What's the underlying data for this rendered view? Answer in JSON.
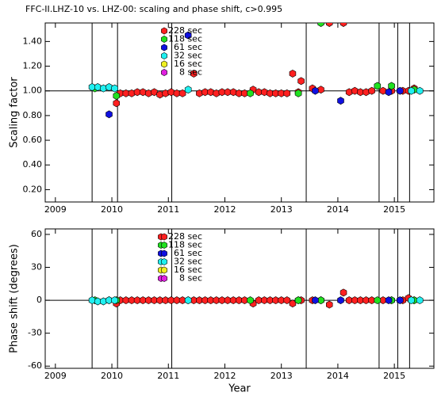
{
  "chart_data": [
    {
      "type": "scatter",
      "title": "FFC-II.LHZ-10 vs. LHZ-00: scaling and phase shift, c>0.995",
      "ylabel": "Scaling factor",
      "xlim": [
        2008.82,
        2015.7
      ],
      "xticks": [
        2009,
        2010,
        2011,
        2012,
        2013,
        2014,
        2015
      ],
      "ylim": [
        0.1,
        1.55
      ],
      "yticks": [
        {
          "value": 0.2,
          "label": "0.20"
        },
        {
          "value": 0.4,
          "label": "0.40"
        },
        {
          "value": 0.6,
          "label": "0.60"
        },
        {
          "value": 0.8,
          "label": "0.80"
        },
        {
          "value": 1.0,
          "label": "1.00"
        },
        {
          "value": 1.2,
          "label": "1.20"
        },
        {
          "value": 1.4,
          "label": "1.40"
        }
      ],
      "vlines": [
        2009.65,
        2010.1,
        2011.06,
        2013.44,
        2014.73,
        2015.06,
        2015.27
      ],
      "hline": 1.0,
      "series": [
        {
          "name": "228 sec",
          "color": "#ff2020",
          "x": [
            2010.08,
            2010.15,
            2010.25,
            2010.35,
            2010.45,
            2010.55,
            2010.65,
            2010.75,
            2010.85,
            2010.95,
            2011.05,
            2011.15,
            2011.25,
            2011.45,
            2011.55,
            2011.65,
            2011.75,
            2011.85,
            2011.95,
            2012.05,
            2012.15,
            2012.25,
            2012.35,
            2012.5,
            2012.6,
            2012.7,
            2012.8,
            2012.9,
            2013.0,
            2013.1,
            2013.2,
            2013.3,
            2013.35,
            2013.55,
            2013.7,
            2013.85,
            2014.1,
            2014.2,
            2014.3,
            2014.4,
            2014.5,
            2014.6,
            2014.8,
            2014.95,
            2015.15,
            2015.25,
            2015.35
          ],
          "values": [
            0.9,
            0.98,
            0.98,
            0.98,
            0.99,
            0.99,
            0.98,
            0.99,
            0.97,
            0.98,
            0.99,
            0.98,
            0.98,
            1.14,
            0.98,
            0.99,
            0.99,
            0.98,
            0.99,
            0.99,
            0.99,
            0.98,
            0.98,
            1.01,
            0.99,
            0.99,
            0.98,
            0.98,
            0.98,
            0.98,
            1.14,
            0.99,
            1.08,
            1.02,
            1.01,
            1.55,
            1.55,
            0.99,
            1.0,
            0.99,
            0.99,
            1.0,
            1.0,
            1.0,
            1.0,
            1.0,
            1.02
          ]
        },
        {
          "name": "118 sec",
          "color": "#20e020",
          "x": [
            2009.7,
            2010.08,
            2012.45,
            2013.3,
            2013.7,
            2014.7,
            2014.95,
            2015.35
          ],
          "values": [
            1.02,
            0.96,
            0.98,
            0.98,
            1.55,
            1.04,
            1.04,
            1.01
          ]
        },
        {
          "name": "61 sec",
          "color": "#1010e0",
          "x": [
            2009.95,
            2011.35,
            2013.6,
            2014.05,
            2014.9,
            2015.1
          ],
          "values": [
            0.81,
            1.45,
            1.0,
            0.92,
            0.99,
            1.0
          ]
        },
        {
          "name": "32 sec",
          "color": "#20f0f0",
          "x": [
            2009.65,
            2009.75,
            2009.85,
            2009.95,
            2010.05,
            2011.35,
            2015.3,
            2015.45
          ],
          "values": [
            1.03,
            1.03,
            1.02,
            1.03,
            1.02,
            1.01,
            1.0,
            1.0
          ]
        },
        {
          "name": "16 sec",
          "color": "#f0f020",
          "x": [],
          "values": []
        },
        {
          "name": "8 sec",
          "color": "#e020e0",
          "x": [],
          "values": []
        }
      ]
    },
    {
      "type": "scatter",
      "ylabel": "Phase shift (degrees)",
      "xlabel": "Year",
      "xlim": [
        2008.82,
        2015.7
      ],
      "xticks": [
        2009,
        2010,
        2011,
        2012,
        2013,
        2014,
        2015
      ],
      "ylim": [
        -62,
        65
      ],
      "yticks": [
        -60,
        -30,
        0,
        30,
        60
      ],
      "vlines": [
        2009.65,
        2010.1,
        2011.06,
        2013.44,
        2014.73,
        2015.06,
        2015.27
      ],
      "hline": 0,
      "series": [
        {
          "name": "228 sec",
          "color": "#ff2020",
          "x": [
            2010.08,
            2010.15,
            2010.25,
            2010.35,
            2010.45,
            2010.55,
            2010.65,
            2010.75,
            2010.85,
            2010.95,
            2011.05,
            2011.15,
            2011.25,
            2011.45,
            2011.55,
            2011.65,
            2011.75,
            2011.85,
            2011.95,
            2012.05,
            2012.15,
            2012.25,
            2012.35,
            2012.5,
            2012.6,
            2012.7,
            2012.8,
            2012.9,
            2013.0,
            2013.1,
            2013.2,
            2013.3,
            2013.35,
            2013.55,
            2013.7,
            2013.85,
            2014.1,
            2014.2,
            2014.3,
            2014.4,
            2014.5,
            2014.6,
            2014.8,
            2014.95,
            2015.15,
            2015.25,
            2015.35
          ],
          "values": [
            -3,
            0,
            0,
            0,
            0,
            0,
            0,
            0,
            0,
            0,
            0,
            0,
            0,
            0,
            0,
            0,
            0,
            0,
            0,
            0,
            0,
            0,
            0,
            -3,
            0,
            0,
            0,
            0,
            0,
            0,
            -3,
            0,
            0,
            0,
            0,
            -4,
            7,
            0,
            0,
            0,
            0,
            0,
            0,
            0,
            0,
            2,
            0
          ]
        },
        {
          "name": "118 sec",
          "color": "#20e020",
          "x": [
            2009.7,
            2010.08,
            2012.45,
            2013.3,
            2013.7,
            2014.7,
            2014.95,
            2015.35
          ],
          "values": [
            0,
            0,
            0,
            0,
            0,
            0,
            0,
            0
          ]
        },
        {
          "name": "61 sec",
          "color": "#1010e0",
          "x": [
            2009.95,
            2011.35,
            2013.6,
            2014.05,
            2014.9,
            2015.1
          ],
          "values": [
            0,
            0,
            0,
            0,
            0,
            0
          ]
        },
        {
          "name": "32 sec",
          "color": "#20f0f0",
          "x": [
            2009.65,
            2009.75,
            2009.85,
            2009.95,
            2010.05,
            2011.35,
            2015.3,
            2015.45
          ],
          "values": [
            0,
            -1,
            -1,
            0,
            0,
            0,
            0,
            0
          ]
        },
        {
          "name": "16 sec",
          "color": "#f0f020",
          "x": [],
          "values": []
        },
        {
          "name": "8 sec",
          "color": "#e020e0",
          "x": [],
          "values": []
        }
      ]
    }
  ]
}
